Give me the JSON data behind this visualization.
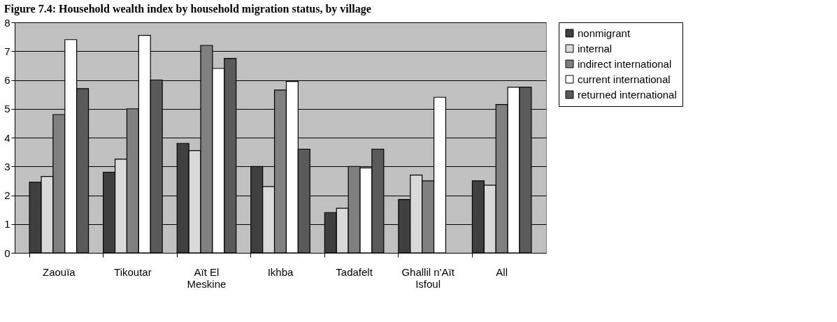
{
  "chart_data": {
    "type": "bar",
    "title": "Figure 7.4: Household wealth index by household migration status, by village",
    "categories": [
      "Zaouïa",
      "Tikoutar",
      "Aït El Meskine",
      "Ikhba",
      "Tadafelt",
      "Ghallil n'Aït Isfoul",
      "All"
    ],
    "series": [
      {
        "name": "nonmigrant",
        "color": "#404040",
        "values": [
          2.45,
          2.8,
          3.8,
          3.0,
          1.4,
          1.85,
          2.5
        ]
      },
      {
        "name": "internal",
        "color": "#d9d9d9",
        "values": [
          2.65,
          3.25,
          3.55,
          2.3,
          1.55,
          2.7,
          2.35
        ]
      },
      {
        "name": "indirect international",
        "color": "#808080",
        "values": [
          4.8,
          5.0,
          7.2,
          5.65,
          3.0,
          2.5,
          5.15
        ]
      },
      {
        "name": "current international",
        "color": "#ffffff",
        "values": [
          7.4,
          7.55,
          6.4,
          5.95,
          2.95,
          5.4,
          5.75
        ]
      },
      {
        "name": "returned international",
        "color": "#5a5a5a",
        "values": [
          5.7,
          6.0,
          6.75,
          3.6,
          3.6,
          null,
          5.75
        ]
      }
    ],
    "ylim": [
      0,
      8
    ],
    "yticks": [
      0,
      1,
      2,
      3,
      4,
      5,
      6,
      7,
      8
    ],
    "grid": "y",
    "legend": "right"
  }
}
